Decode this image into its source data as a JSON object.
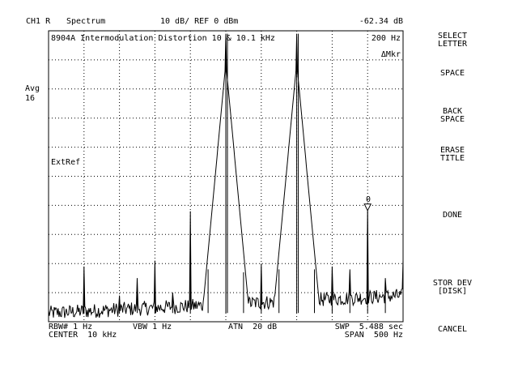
{
  "header": {
    "channel": "CH1 R",
    "mode": "Spectrum",
    "scale": "10 dB/ REF 0 dBm",
    "marker_value": "-62.34 dB"
  },
  "plot": {
    "title": "8904A Intermodulation Distortion 10 & 10.1 kHz",
    "marker_offset": "200 Hz",
    "marker_mode": "ΔMkr",
    "marker_label": "0",
    "extref": "ExtRef"
  },
  "side": {
    "avg_label": "Avg",
    "avg_count": "16"
  },
  "footer": {
    "rbw": "RBW# 1 Hz",
    "vbw": "VBW 1 Hz",
    "atn": "ATN  20 dB",
    "swp": "SWP  5.488 sec",
    "center": "CENTER  10 kHz",
    "span": "SPAN  500 Hz"
  },
  "softkeys": [
    {
      "line1": "SELECT",
      "line2": "LETTER"
    },
    {
      "line1": "SPACE",
      "line2": ""
    },
    {
      "line1": "BACK",
      "line2": "SPACE"
    },
    {
      "line1": "ERASE",
      "line2": "TITLE"
    },
    {
      "line1": "DONE",
      "line2": ""
    },
    {
      "line1": "STOR DEV",
      "line2": "[DISK]"
    },
    {
      "line1": "CANCEL",
      "line2": ""
    }
  ],
  "chart_data": {
    "type": "line",
    "x_unit": "kHz",
    "y_unit": "dB",
    "xlim": [
      9.75,
      10.25
    ],
    "ylim": [
      -100,
      0
    ],
    "grid": true,
    "x_divisions": 10,
    "y_divisions": 10,
    "noise_floor_db": -97,
    "peaks": [
      {
        "x": 9.8,
        "db": -81
      },
      {
        "x": 9.85,
        "db": -91
      },
      {
        "x": 9.9,
        "db": -79
      },
      {
        "x": 9.95,
        "db": -62
      },
      {
        "x": 10.0,
        "db": -1
      },
      {
        "x": 10.05,
        "db": -80
      },
      {
        "x": 10.1,
        "db": -1
      },
      {
        "x": 10.15,
        "db": -81
      },
      {
        "x": 10.2,
        "db": -60
      },
      {
        "x": 10.25,
        "db": -79
      }
    ],
    "small_spurs": [
      {
        "x": 9.875,
        "db": -85
      },
      {
        "x": 9.925,
        "db": -90
      },
      {
        "x": 9.975,
        "db": -82
      },
      {
        "x": 10.025,
        "db": -83
      },
      {
        "x": 10.075,
        "db": -82
      },
      {
        "x": 10.125,
        "db": -82
      },
      {
        "x": 10.175,
        "db": -82
      },
      {
        "x": 10.225,
        "db": -85
      }
    ],
    "marker": {
      "x": 10.2,
      "db": -62.34
    }
  }
}
